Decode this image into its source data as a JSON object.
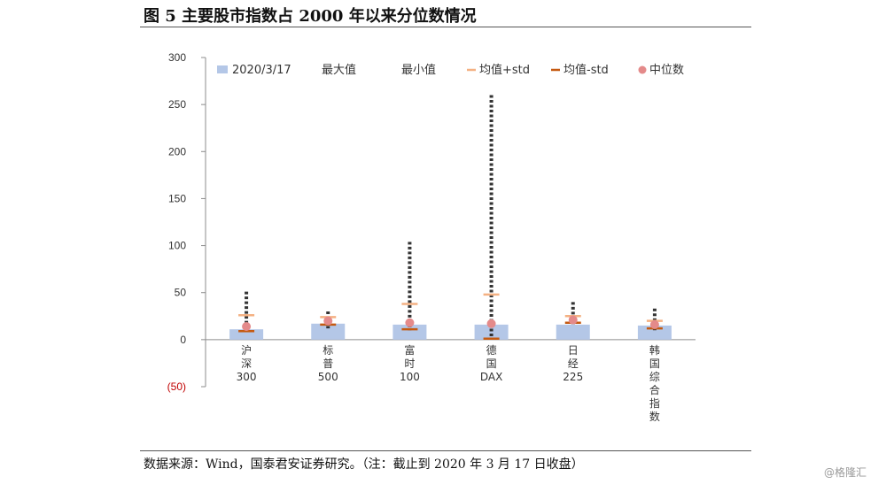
{
  "title": "图 5 主要股市指数占 2000 年以来分位数情况",
  "source": "数据来源：Wind，国泰君安证券研究。（注：截止到 2020 年 3 月 17 日收盘）",
  "watermark": "@格隆汇",
  "chart_data": {
    "type": "bar",
    "categories": [
      "沪深300",
      "标普500",
      "富时100",
      "德国DAX",
      "日经225",
      "韩国综合指数"
    ],
    "ylim": [
      -50,
      300
    ],
    "yticks": [
      {
        "value": 300,
        "label": "300"
      },
      {
        "value": 250,
        "label": "250"
      },
      {
        "value": 200,
        "label": "200"
      },
      {
        "value": 150,
        "label": "150"
      },
      {
        "value": 100,
        "label": "100"
      },
      {
        "value": 50,
        "label": "50"
      },
      {
        "value": 0,
        "label": "0"
      },
      {
        "value": -50,
        "label": "(50)"
      }
    ],
    "legend_position": "top",
    "series": [
      {
        "name": "2020/3/17",
        "kind": "bar",
        "color": "#b4c7e7",
        "values": [
          11,
          17,
          16,
          16,
          16,
          15
        ]
      },
      {
        "name": "最大值",
        "kind": "dotted-range-top",
        "color": "#333333",
        "values": [
          51,
          30,
          104,
          260,
          40,
          33
        ]
      },
      {
        "name": "最小值",
        "kind": "dotted-range-bottom",
        "color": "#333333",
        "values": [
          8,
          12,
          10,
          1,
          15,
          10
        ]
      },
      {
        "name": "均值+std",
        "kind": "dash",
        "color": "#f4b183",
        "values": [
          26,
          24,
          38,
          48,
          25,
          20
        ]
      },
      {
        "name": "均值-std",
        "kind": "dash",
        "color": "#c55a11",
        "values": [
          9,
          16,
          11,
          1,
          18,
          12
        ]
      },
      {
        "name": "中位数",
        "kind": "dot",
        "color": "#e48a8a",
        "values": [
          14,
          20,
          18,
          17,
          21,
          16
        ]
      }
    ]
  }
}
